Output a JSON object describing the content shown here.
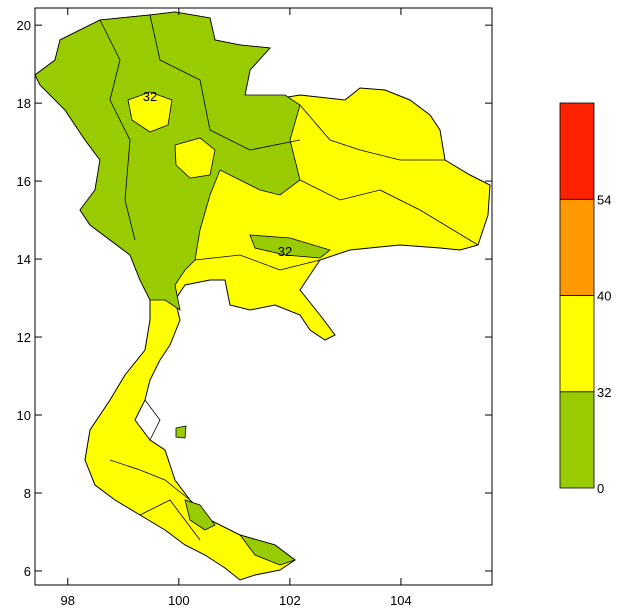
{
  "map": {
    "xlim": [
      97.41,
      105.64
    ],
    "ylim": [
      5.64,
      20.44
    ],
    "xticks": [
      98,
      100,
      102,
      104
    ],
    "yticks": [
      6,
      8,
      10,
      12,
      14,
      16,
      18,
      20
    ],
    "contour_labels": [
      "32",
      "32"
    ],
    "colorbar": {
      "levels": [
        0,
        32,
        40,
        54
      ],
      "colors": [
        "#99cc00",
        "#ffff00",
        "#ff9900",
        "#ff2200"
      ]
    }
  }
}
